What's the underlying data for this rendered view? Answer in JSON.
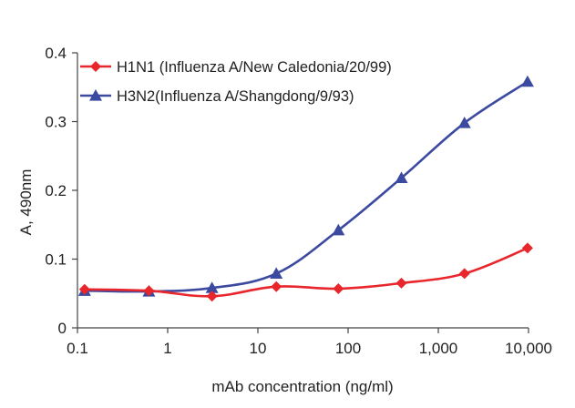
{
  "chart_data": {
    "type": "line",
    "title": "",
    "xlabel": "mAb concentration (ng/ml)",
    "ylabel": "A, 490nm",
    "x_scale": "log",
    "xlim": [
      0.1,
      10000
    ],
    "ylim": [
      0,
      0.4
    ],
    "x_ticks": [
      0.1,
      1,
      10,
      100,
      1000,
      10000
    ],
    "x_tick_labels": [
      "0.1",
      "1",
      "10",
      "100",
      "1,000",
      "10,000"
    ],
    "y_ticks": [
      0,
      0.1,
      0.2,
      0.3,
      0.4
    ],
    "y_tick_labels": [
      "0",
      "0.1",
      "0.2",
      "0.3",
      "0.4"
    ],
    "grid": false,
    "legend_position": "top-left",
    "series": [
      {
        "name": "H1N1 (Influenza A/New Caledonia/20/99)",
        "color": "#e8262b",
        "marker": "diamond",
        "x": [
          0.12,
          0.62,
          3.1,
          16,
          78,
          390,
          1950,
          9750
        ],
        "y": [
          0.056,
          0.054,
          0.046,
          0.06,
          0.057,
          0.065,
          0.079,
          0.116
        ]
      },
      {
        "name": "H3N2(Influenza A/Shangdong/9/93)",
        "color": "#3b4aa0",
        "marker": "triangle",
        "x": [
          0.12,
          0.62,
          3.1,
          16,
          78,
          390,
          1950,
          9750
        ],
        "y": [
          0.054,
          0.053,
          0.058,
          0.079,
          0.142,
          0.218,
          0.298,
          0.358
        ]
      }
    ]
  }
}
